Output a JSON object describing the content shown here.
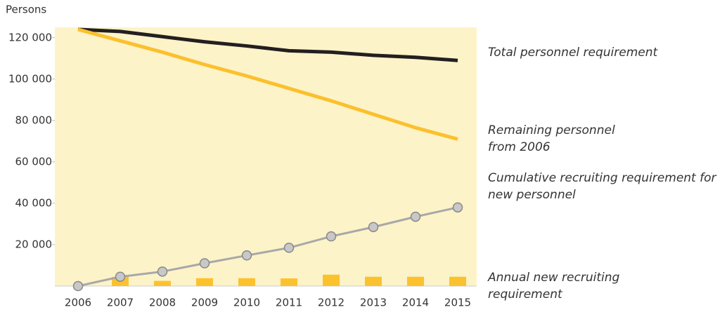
{
  "chart_data": {
    "type": "line",
    "y_label": "Persons",
    "categories": [
      "2006",
      "2007",
      "2008",
      "2009",
      "2010",
      "2011",
      "2012",
      "2013",
      "2014",
      "2015"
    ],
    "ylim": [
      0,
      125000
    ],
    "yticks": [
      {
        "value": 20000,
        "label": "20 000"
      },
      {
        "value": 40000,
        "label": "40 000"
      },
      {
        "value": 60000,
        "label": "60 000"
      },
      {
        "value": 80000,
        "label": "80 000"
      },
      {
        "value": 100000,
        "label": "100 000"
      },
      {
        "value": 120000,
        "label": "120 000"
      }
    ],
    "background": "#fdf3c8",
    "series": [
      {
        "name": "Total personnel requirement",
        "color": "#231f20",
        "kind": "line",
        "values": [
          124000,
          123000,
          120500,
          118000,
          116000,
          113700,
          113000,
          111500,
          110500,
          109000
        ]
      },
      {
        "name": "Remaining personnel from 2006",
        "color": "#fbc02d",
        "kind": "line",
        "values": [
          124000,
          118500,
          113000,
          107000,
          101500,
          95500,
          89500,
          83000,
          76500,
          71000
        ]
      },
      {
        "name": "Cumulative recruiting requirement for new personnel",
        "color": "#a8a8a8",
        "kind": "marker-line",
        "values": [
          0,
          4500,
          7000,
          11000,
          14800,
          18500,
          24000,
          28500,
          33500,
          38000
        ]
      },
      {
        "name": "Annual new recruiting requirement",
        "color": "#fcc22d",
        "kind": "bar",
        "values": [
          0,
          4400,
          2500,
          3800,
          3800,
          3700,
          5500,
          4500,
          4500,
          4500
        ]
      }
    ]
  }
}
